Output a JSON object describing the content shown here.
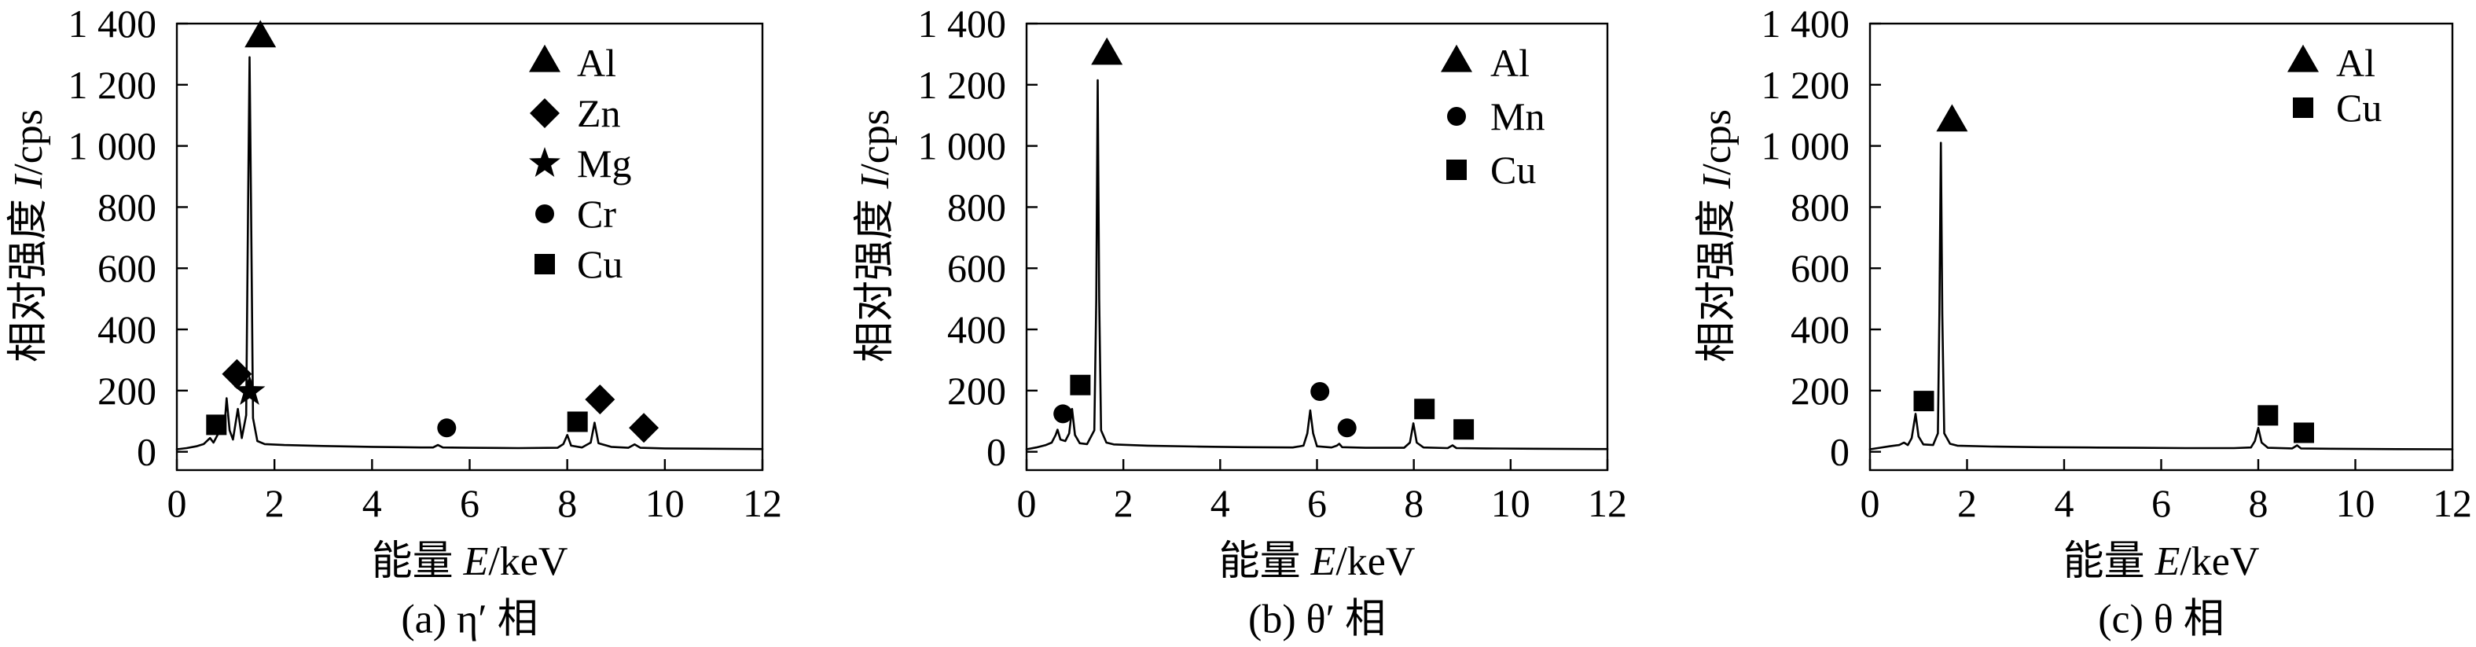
{
  "colors": {
    "line": "#000000",
    "markers": "#000000",
    "background": "#ffffff"
  },
  "chart_data": [
    {
      "type": "line",
      "caption": "(a) η′ 相",
      "xlabel": "能量 E/keV",
      "ylabel": "相对强度 I/cps",
      "xlim": [
        0,
        12
      ],
      "ylim": [
        -60,
        1400
      ],
      "x_ticks": [
        0,
        2,
        4,
        6,
        8,
        10,
        12
      ],
      "x_tick_labels": [
        "0",
        "2",
        "4",
        "6",
        "8",
        "10",
        "12"
      ],
      "y_ticks": [
        0,
        200,
        400,
        600,
        800,
        1000,
        1200,
        1400
      ],
      "y_tick_labels": [
        "0",
        "200",
        "400",
        "600",
        "800",
        "1 000",
        "1 200",
        "1 400"
      ],
      "grid": false,
      "legend_position": "top-right",
      "legend": [
        {
          "marker": "triangle",
          "label": "Al"
        },
        {
          "marker": "diamond",
          "label": "Zn"
        },
        {
          "marker": "star",
          "label": "Mg"
        },
        {
          "marker": "circle",
          "label": "Cr"
        },
        {
          "marker": "square",
          "label": "Cu"
        }
      ],
      "series": [
        {
          "x": [
            0,
            0.2,
            0.4,
            0.55,
            0.68,
            0.75,
            0.85,
            0.93,
            0.97,
            1.02,
            1.08,
            1.15,
            1.25,
            1.33,
            1.42,
            1.46,
            1.49,
            1.52,
            1.56,
            1.65,
            1.8,
            2.2,
            3,
            4,
            5,
            5.25,
            5.35,
            5.45,
            6,
            7,
            7.8,
            7.92,
            8,
            8.08,
            8.3,
            8.48,
            8.56,
            8.64,
            8.9,
            9.25,
            9.38,
            9.5,
            10,
            11,
            12
          ],
          "y": [
            8,
            12,
            18,
            25,
            45,
            30,
            60,
            95,
            70,
            175,
            70,
            40,
            140,
            45,
            120,
            800,
            1290,
            800,
            110,
            35,
            25,
            22,
            19,
            16,
            14,
            14,
            22,
            14,
            13,
            12,
            13,
            25,
            55,
            20,
            14,
            30,
            95,
            28,
            16,
            13,
            24,
            13,
            11,
            10,
            9
          ]
        }
      ],
      "peak_markers": [
        {
          "marker": "square",
          "x": 0.81,
          "y": 88
        },
        {
          "marker": "diamond",
          "x": 1.23,
          "y": 254
        },
        {
          "marker": "star",
          "x": 1.49,
          "y": 197
        },
        {
          "marker": "triangle",
          "x": 1.71,
          "y": 1352
        },
        {
          "marker": "circle",
          "x": 5.53,
          "y": 78
        },
        {
          "marker": "square",
          "x": 8.21,
          "y": 98
        },
        {
          "marker": "diamond",
          "x": 8.67,
          "y": 171
        },
        {
          "marker": "diamond",
          "x": 9.57,
          "y": 78
        }
      ]
    },
    {
      "type": "line",
      "caption": "(b) θ′ 相",
      "xlabel": "能量 E/keV",
      "ylabel": "相对强度 I/cps",
      "xlim": [
        0,
        12
      ],
      "ylim": [
        -60,
        1400
      ],
      "x_ticks": [
        0,
        2,
        4,
        6,
        8,
        10,
        12
      ],
      "x_tick_labels": [
        "0",
        "2",
        "4",
        "6",
        "8",
        "10",
        "12"
      ],
      "y_ticks": [
        0,
        200,
        400,
        600,
        800,
        1000,
        1200,
        1400
      ],
      "y_tick_labels": [
        "0",
        "200",
        "400",
        "600",
        "800",
        "1 000",
        "1 200",
        "1 400"
      ],
      "grid": false,
      "legend_position": "top-right",
      "legend": [
        {
          "marker": "triangle",
          "label": "Al"
        },
        {
          "marker": "circle",
          "label": "Mn"
        },
        {
          "marker": "square",
          "label": "Cu"
        }
      ],
      "series": [
        {
          "x": [
            0,
            0.2,
            0.4,
            0.52,
            0.6,
            0.64,
            0.7,
            0.8,
            0.88,
            0.94,
            1.0,
            1.1,
            1.25,
            1.4,
            1.44,
            1.47,
            1.5,
            1.54,
            1.65,
            1.8,
            2.5,
            3.5,
            4.5,
            5.5,
            5.72,
            5.8,
            5.86,
            5.92,
            6.0,
            6.3,
            6.41,
            6.46,
            6.52,
            7,
            7.8,
            7.92,
            7.99,
            8.06,
            8.2,
            8.7,
            8.8,
            8.88,
            9.5,
            10.5,
            12
          ],
          "y": [
            8,
            14,
            22,
            30,
            55,
            72,
            40,
            35,
            60,
            140,
            55,
            28,
            25,
            70,
            500,
            1215,
            500,
            70,
            30,
            24,
            20,
            17,
            15,
            14,
            20,
            60,
            135,
            60,
            18,
            14,
            20,
            26,
            15,
            13,
            13,
            30,
            93,
            30,
            14,
            12,
            21,
            12,
            11,
            10,
            9
          ]
        }
      ],
      "peak_markers": [
        {
          "marker": "circle",
          "x": 0.75,
          "y": 124
        },
        {
          "marker": "square",
          "x": 1.11,
          "y": 218
        },
        {
          "marker": "triangle",
          "x": 1.66,
          "y": 1295
        },
        {
          "marker": "circle",
          "x": 6.06,
          "y": 197
        },
        {
          "marker": "circle",
          "x": 6.62,
          "y": 78
        },
        {
          "marker": "square",
          "x": 8.22,
          "y": 140
        },
        {
          "marker": "square",
          "x": 9.03,
          "y": 73
        }
      ]
    },
    {
      "type": "line",
      "caption": "(c) θ 相",
      "xlabel": "能量 E/keV",
      "ylabel": "相对强度 I/cps",
      "xlim": [
        0,
        12
      ],
      "ylim": [
        -60,
        1400
      ],
      "x_ticks": [
        0,
        2,
        4,
        6,
        8,
        10,
        12
      ],
      "x_tick_labels": [
        "0",
        "2",
        "4",
        "6",
        "8",
        "10",
        "12"
      ],
      "y_ticks": [
        0,
        200,
        400,
        600,
        800,
        1000,
        1200,
        1400
      ],
      "y_tick_labels": [
        "0",
        "200",
        "400",
        "600",
        "800",
        "1 000",
        "1 200",
        "1 400"
      ],
      "grid": false,
      "legend_position": "top-right",
      "legend": [
        {
          "marker": "triangle",
          "label": "Al"
        },
        {
          "marker": "square",
          "label": "Cu"
        }
      ],
      "series": [
        {
          "x": [
            0,
            0.2,
            0.4,
            0.6,
            0.7,
            0.78,
            0.86,
            0.94,
            1.0,
            1.1,
            1.3,
            1.4,
            1.43,
            1.46,
            1.49,
            1.53,
            1.65,
            1.8,
            2.5,
            3.5,
            4.5,
            5.5,
            6.5,
            7.5,
            7.85,
            7.93,
            8.0,
            8.07,
            8.2,
            8.7,
            8.8,
            8.88,
            9.5,
            10.5,
            12
          ],
          "y": [
            8,
            13,
            18,
            22,
            30,
            22,
            45,
            124,
            50,
            24,
            22,
            60,
            450,
            1010,
            450,
            60,
            26,
            20,
            17,
            15,
            14,
            13,
            12,
            12,
            14,
            35,
            78,
            30,
            13,
            11,
            21,
            11,
            10,
            9,
            8
          ]
        }
      ],
      "peak_markers": [
        {
          "marker": "square",
          "x": 1.11,
          "y": 166
        },
        {
          "marker": "triangle",
          "x": 1.69,
          "y": 1077
        },
        {
          "marker": "square",
          "x": 8.2,
          "y": 119
        },
        {
          "marker": "square",
          "x": 8.94,
          "y": 62
        }
      ]
    }
  ]
}
